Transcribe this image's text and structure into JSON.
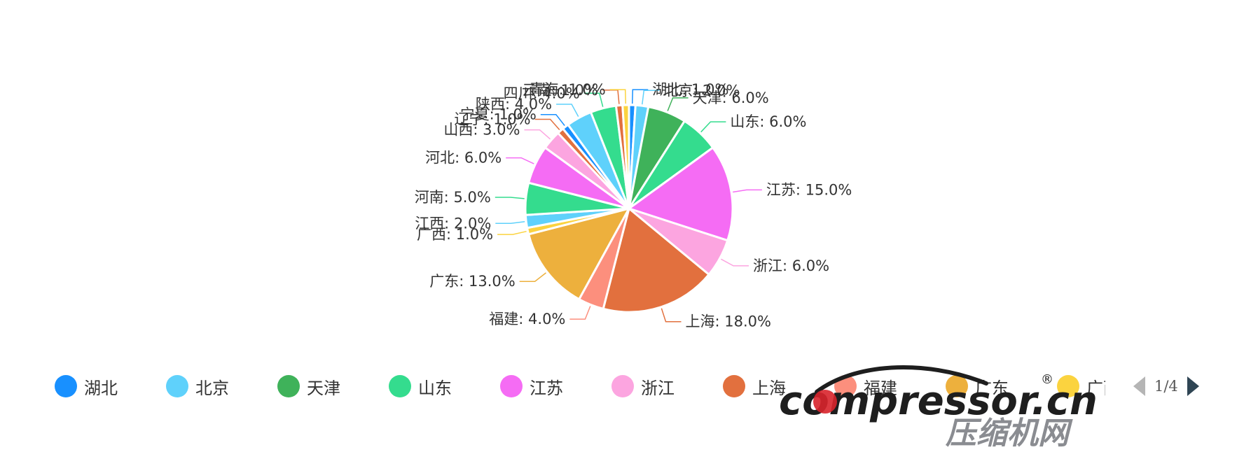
{
  "chart_data": {
    "type": "pie",
    "label_format": "{name}: {value}%",
    "slices": [
      {
        "name": "湖北",
        "value": 1.0,
        "label": "湖北: 1.0%",
        "color": "#1890ff"
      },
      {
        "name": "北京",
        "value": 2.0,
        "label": "北京: 2.0%",
        "color": "#5fd1fb"
      },
      {
        "name": "天津",
        "value": 6.0,
        "label": "天津: 6.0%",
        "color": "#3fb25a"
      },
      {
        "name": "山东",
        "value": 6.0,
        "label": "山东: 6.0%",
        "color": "#34dc8e"
      },
      {
        "name": "江苏",
        "value": 15.0,
        "label": "江苏: 15.0%",
        "color": "#f56cf4"
      },
      {
        "name": "浙江",
        "value": 6.0,
        "label": "浙江: 6.0%",
        "color": "#fca5e0"
      },
      {
        "name": "上海",
        "value": 18.0,
        "label": "上海: 18.0%",
        "color": "#e2703e"
      },
      {
        "name": "福建",
        "value": 4.0,
        "label": "福建: 4.0%",
        "color": "#fc8f7d"
      },
      {
        "name": "广东",
        "value": 13.0,
        "label": "广东: 13.0%",
        "color": "#edb03d"
      },
      {
        "name": "广西",
        "value": 1.0,
        "label": "广西: 1.0%",
        "color": "#fbd33f"
      },
      {
        "name": "江西",
        "value": 2.0,
        "label": "江西: 2.0%",
        "color": "#5fd1fb"
      },
      {
        "name": "河南",
        "value": 5.0,
        "label": "河南: 5.0%",
        "color": "#34dc8e"
      },
      {
        "name": "河北",
        "value": 6.0,
        "label": "河北: 6.0%",
        "color": "#f56cf4"
      },
      {
        "name": "山西",
        "value": 3.0,
        "label": "山西: 3.0%",
        "color": "#fca5e0"
      },
      {
        "name": "辽宁",
        "value": 1.0,
        "label": "辽宁: 1.0%",
        "color": "#e2703e"
      },
      {
        "name": "宁夏",
        "value": 1.0,
        "label": "宁夏: 1.0%",
        "color": "#1890ff"
      },
      {
        "name": "陕西",
        "value": 4.0,
        "label": "陕西: 4.0%",
        "color": "#5fd1fb"
      },
      {
        "name": "四川",
        "value": 4.0,
        "label": "四川: 4.0%",
        "color": "#34dc8e"
      },
      {
        "name": "云南",
        "value": 1.0,
        "label": "云南: 1.0%",
        "color": "#e2703e"
      },
      {
        "name": "青海",
        "value": 1.0,
        "label": "青海: 1.0%",
        "color": "#fbd33f"
      }
    ],
    "legend_placement": "bottom"
  },
  "legend": {
    "items": [
      {
        "name": "湖北",
        "color": "#1890ff"
      },
      {
        "name": "北京",
        "color": "#5fd1fb"
      },
      {
        "name": "天津",
        "color": "#3fb25a"
      },
      {
        "name": "山东",
        "color": "#34dc8e"
      },
      {
        "name": "江苏",
        "color": "#f56cf4"
      },
      {
        "name": "浙江",
        "color": "#fca5e0"
      },
      {
        "name": "上海",
        "color": "#e2703e"
      },
      {
        "name": "福建",
        "color": "#fc8f7d"
      },
      {
        "name": "广东",
        "color": "#edb03d"
      },
      {
        "name": "广西",
        "color": "#fbd33f"
      }
    ],
    "page": "1/4"
  },
  "watermark": {
    "text": "compressor.cn",
    "registered": "®",
    "subtitle": "压缩机网",
    "colors": {
      "main": "#1e1e1e",
      "accent": "#d8242b",
      "sub": "#8a8c91"
    }
  }
}
